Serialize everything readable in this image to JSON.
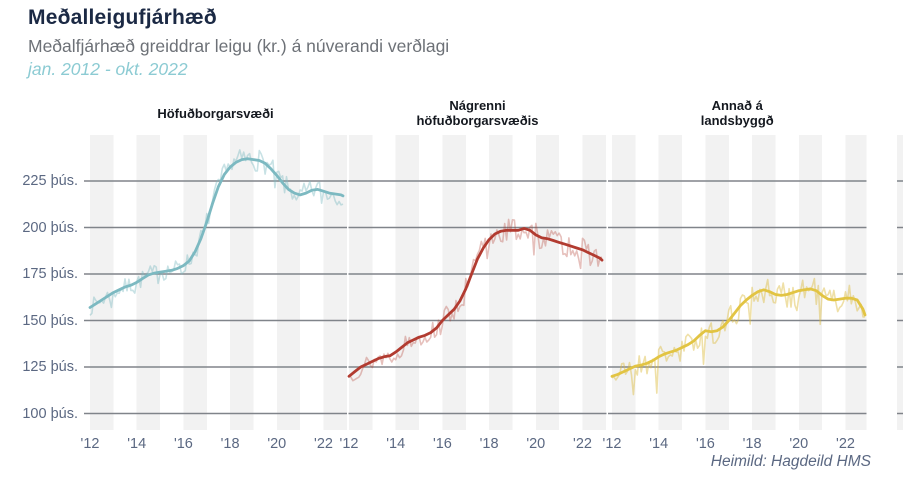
{
  "header": {
    "title": "Meðalleigufjárhæð",
    "subtitle": "Meðalfjárhæð greiddrar leigu (kr.) á núverandi verðlagi",
    "period": "jan. 2012 - okt. 2022"
  },
  "footer": {
    "source": "Heimild: Hagdeild HMS"
  },
  "colors": {
    "title_text": "#1b2944",
    "subtitle_text": "#6d7177",
    "period_text": "#8ccbd3",
    "axis_text": "#5b6882",
    "gridline": "#80848a",
    "year_band": "#f2f2f2",
    "sliver": "#f2f2f2"
  },
  "chart_data": {
    "type": "line",
    "title": "Meðalleigufjárhæð",
    "subtitle": "Meðalfjárhæð greiddrar leigu (kr.) á núverandi verðlagi",
    "period_label": "jan. 2012 - okt. 2022",
    "x_range": [
      2012.0,
      2022.833
    ],
    "ylim": [
      91,
      250
    ],
    "grid": "horizontal",
    "shaded_years": [
      2012,
      2014,
      2016,
      2018,
      2020,
      2022
    ],
    "y_ticks": [
      {
        "v": 225,
        "label": "225 þús."
      },
      {
        "v": 200,
        "label": "200 þús."
      },
      {
        "v": 175,
        "label": "175 þús."
      },
      {
        "v": 150,
        "label": "150 þús."
      },
      {
        "v": 125,
        "label": "125 þús."
      },
      {
        "v": 100,
        "label": "100 þús."
      }
    ],
    "x_ticks": [
      {
        "t": 2012,
        "label": "'12"
      },
      {
        "t": 2014,
        "label": "'14"
      },
      {
        "t": 2016,
        "label": "'16"
      },
      {
        "t": 2018,
        "label": "'18"
      },
      {
        "t": 2020,
        "label": "'20"
      },
      {
        "t": 2022,
        "label": "'22"
      }
    ],
    "panels": [
      {
        "id": "hofudborgarsvaedi",
        "title_lines": [
          "Höfuðborgarsvæði"
        ],
        "color_strong": "#7cb9c1",
        "color_light": "rgba(124,185,193,0.42)",
        "noise": {
          "amp": 4.2,
          "seed": 7,
          "dip_extra": 3
        },
        "trend": [
          [
            2012.0,
            157
          ],
          [
            2012.25,
            159
          ],
          [
            2012.5,
            161
          ],
          [
            2012.75,
            163
          ],
          [
            2013.0,
            165
          ],
          [
            2013.25,
            166.5
          ],
          [
            2013.5,
            168
          ],
          [
            2013.75,
            169
          ],
          [
            2014.0,
            170.5
          ],
          [
            2014.25,
            172.5
          ],
          [
            2014.5,
            174.5
          ],
          [
            2014.75,
            175.5
          ],
          [
            2015.0,
            176
          ],
          [
            2015.25,
            176.5
          ],
          [
            2015.5,
            177
          ],
          [
            2015.75,
            178
          ],
          [
            2016.0,
            179.5
          ],
          [
            2016.25,
            182
          ],
          [
            2016.5,
            187
          ],
          [
            2016.75,
            194
          ],
          [
            2017.0,
            203
          ],
          [
            2017.25,
            213
          ],
          [
            2017.5,
            222
          ],
          [
            2017.75,
            228.5
          ],
          [
            2018.0,
            232.5
          ],
          [
            2018.25,
            235
          ],
          [
            2018.5,
            236.5
          ],
          [
            2018.75,
            237
          ],
          [
            2019.0,
            236.5
          ],
          [
            2019.25,
            236
          ],
          [
            2019.5,
            234.5
          ],
          [
            2019.75,
            231.5
          ],
          [
            2020.0,
            228
          ],
          [
            2020.25,
            224
          ],
          [
            2020.5,
            220.5
          ],
          [
            2020.75,
            218.5
          ],
          [
            2021.0,
            217.5
          ],
          [
            2021.25,
            218.5
          ],
          [
            2021.5,
            220
          ],
          [
            2021.75,
            220.5
          ],
          [
            2022.0,
            219.5
          ],
          [
            2022.25,
            218.5
          ],
          [
            2022.5,
            218
          ],
          [
            2022.75,
            217.5
          ],
          [
            2022.833,
            217
          ]
        ]
      },
      {
        "id": "nagrenni-hofudborgarsvaedis",
        "title_lines": [
          "Nágrenni",
          "höfuðborgarsvæðis"
        ],
        "color_strong": "#b23b30",
        "color_light": "rgba(178,59,48,0.32)",
        "noise": {
          "amp": 5.5,
          "seed": 13,
          "dip_extra": 6
        },
        "trend": [
          [
            2012.0,
            120
          ],
          [
            2012.25,
            122.5
          ],
          [
            2012.5,
            125
          ],
          [
            2012.75,
            126.5
          ],
          [
            2013.0,
            128
          ],
          [
            2013.25,
            129.5
          ],
          [
            2013.5,
            130.5
          ],
          [
            2013.75,
            131
          ],
          [
            2014.0,
            133
          ],
          [
            2014.25,
            135.5
          ],
          [
            2014.5,
            138
          ],
          [
            2014.75,
            139.5
          ],
          [
            2015.0,
            141
          ],
          [
            2015.25,
            142
          ],
          [
            2015.5,
            143.5
          ],
          [
            2015.75,
            146
          ],
          [
            2016.0,
            150
          ],
          [
            2016.25,
            153
          ],
          [
            2016.5,
            156
          ],
          [
            2016.75,
            160.5
          ],
          [
            2017.0,
            167
          ],
          [
            2017.25,
            175
          ],
          [
            2017.5,
            183
          ],
          [
            2017.75,
            189
          ],
          [
            2018.0,
            193.5
          ],
          [
            2018.25,
            196.5
          ],
          [
            2018.5,
            198
          ],
          [
            2018.75,
            198.5
          ],
          [
            2019.0,
            198.5
          ],
          [
            2019.25,
            198.5
          ],
          [
            2019.5,
            199.5
          ],
          [
            2019.75,
            198.5
          ],
          [
            2020.0,
            196
          ],
          [
            2020.25,
            194.5
          ],
          [
            2020.5,
            194
          ],
          [
            2020.75,
            193
          ],
          [
            2021.0,
            192
          ],
          [
            2021.25,
            191
          ],
          [
            2021.5,
            190
          ],
          [
            2021.75,
            189
          ],
          [
            2022.0,
            188
          ],
          [
            2022.25,
            186.5
          ],
          [
            2022.5,
            185
          ],
          [
            2022.75,
            183.5
          ],
          [
            2022.833,
            182.5
          ]
        ]
      },
      {
        "id": "annad-a-landsbyggd",
        "title_lines": [
          "Annað á",
          "landsbyggð"
        ],
        "color_strong": "#e2c443",
        "color_light": "rgba(220,186,60,0.45)",
        "noise": {
          "amp": 7,
          "seed": 21,
          "dip_extra": 11
        },
        "trend": [
          [
            2012.0,
            120
          ],
          [
            2012.25,
            121
          ],
          [
            2012.5,
            122.5
          ],
          [
            2012.75,
            124
          ],
          [
            2013.0,
            125.5
          ],
          [
            2013.25,
            126
          ],
          [
            2013.5,
            127
          ],
          [
            2013.75,
            128.5
          ],
          [
            2014.0,
            130.5
          ],
          [
            2014.25,
            132
          ],
          [
            2014.5,
            133
          ],
          [
            2014.75,
            134
          ],
          [
            2015.0,
            135.5
          ],
          [
            2015.25,
            137
          ],
          [
            2015.5,
            139
          ],
          [
            2015.75,
            142
          ],
          [
            2016.0,
            144.5
          ],
          [
            2016.25,
            144
          ],
          [
            2016.5,
            144.5
          ],
          [
            2016.75,
            146.5
          ],
          [
            2017.0,
            150
          ],
          [
            2017.25,
            154
          ],
          [
            2017.5,
            158
          ],
          [
            2017.75,
            161
          ],
          [
            2018.0,
            163.5
          ],
          [
            2018.25,
            165.5
          ],
          [
            2018.5,
            166.5
          ],
          [
            2018.75,
            165.5
          ],
          [
            2019.0,
            164
          ],
          [
            2019.25,
            163.5
          ],
          [
            2019.5,
            164
          ],
          [
            2019.75,
            165
          ],
          [
            2020.0,
            166
          ],
          [
            2020.25,
            166.5
          ],
          [
            2020.5,
            167
          ],
          [
            2020.75,
            166
          ],
          [
            2021.0,
            163.5
          ],
          [
            2021.25,
            161.5
          ],
          [
            2021.5,
            161
          ],
          [
            2021.75,
            161.5
          ],
          [
            2022.0,
            162
          ],
          [
            2022.25,
            162
          ],
          [
            2022.5,
            161
          ],
          [
            2022.75,
            156
          ],
          [
            2022.833,
            153
          ]
        ]
      }
    ]
  }
}
